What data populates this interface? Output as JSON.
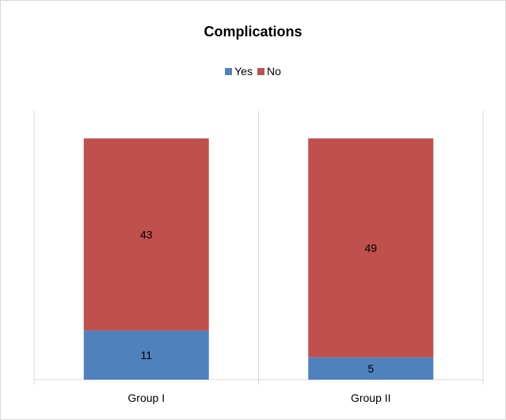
{
  "chart_data": {
    "type": "bar",
    "stacked": true,
    "title": "Complications",
    "categories": [
      "Group I",
      "Group II"
    ],
    "series": [
      {
        "name": "Yes",
        "values": [
          11,
          5
        ],
        "color": "#4f81bd"
      },
      {
        "name": "No",
        "values": [
          43,
          49
        ],
        "color": "#c0504d"
      }
    ],
    "data_labels": true,
    "legend_position": "top",
    "grid": false,
    "ylim": [
      0,
      54
    ]
  }
}
